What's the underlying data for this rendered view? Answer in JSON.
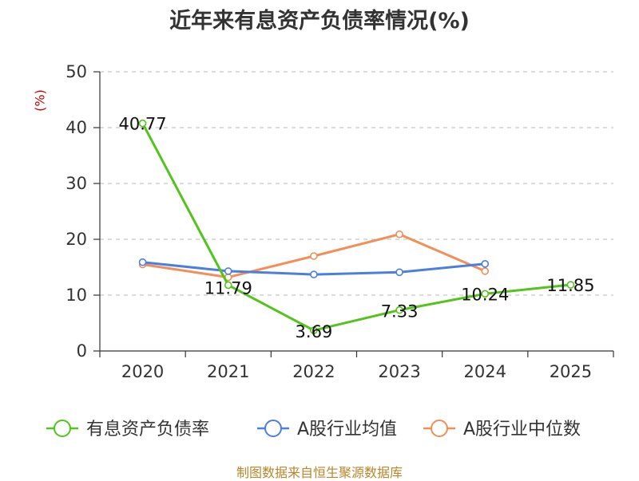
{
  "chart_data": {
    "type": "line",
    "title": "近年来有息资产负债率情况(%)",
    "ylabel": "(%)",
    "xlabel": "",
    "categories": [
      "2020",
      "2021",
      "2022",
      "2023",
      "2024",
      "2025"
    ],
    "ylim": [
      0,
      50
    ],
    "yticks": [
      0,
      10,
      20,
      30,
      40,
      50
    ],
    "grid": true,
    "legend_position": "bottom",
    "series": [
      {
        "name": "有息资产负债率",
        "color": "#52c41a",
        "values": [
          40.77,
          11.79,
          3.69,
          7.33,
          10.24,
          11.85
        ],
        "labels": [
          "40.77",
          "11.79",
          "3.69",
          "7.33",
          "10.24",
          "11.85"
        ]
      },
      {
        "name": "A股行业均值",
        "color": "#4a7fe0",
        "values": [
          15.9,
          14.3,
          13.7,
          14.1,
          15.6,
          null
        ]
      },
      {
        "name": "A股行业中位数",
        "color": "#f28e56",
        "values": [
          15.5,
          13.2,
          17.0,
          20.9,
          14.3,
          null
        ]
      }
    ]
  },
  "source": "制图数据来自恒生聚源数据库"
}
